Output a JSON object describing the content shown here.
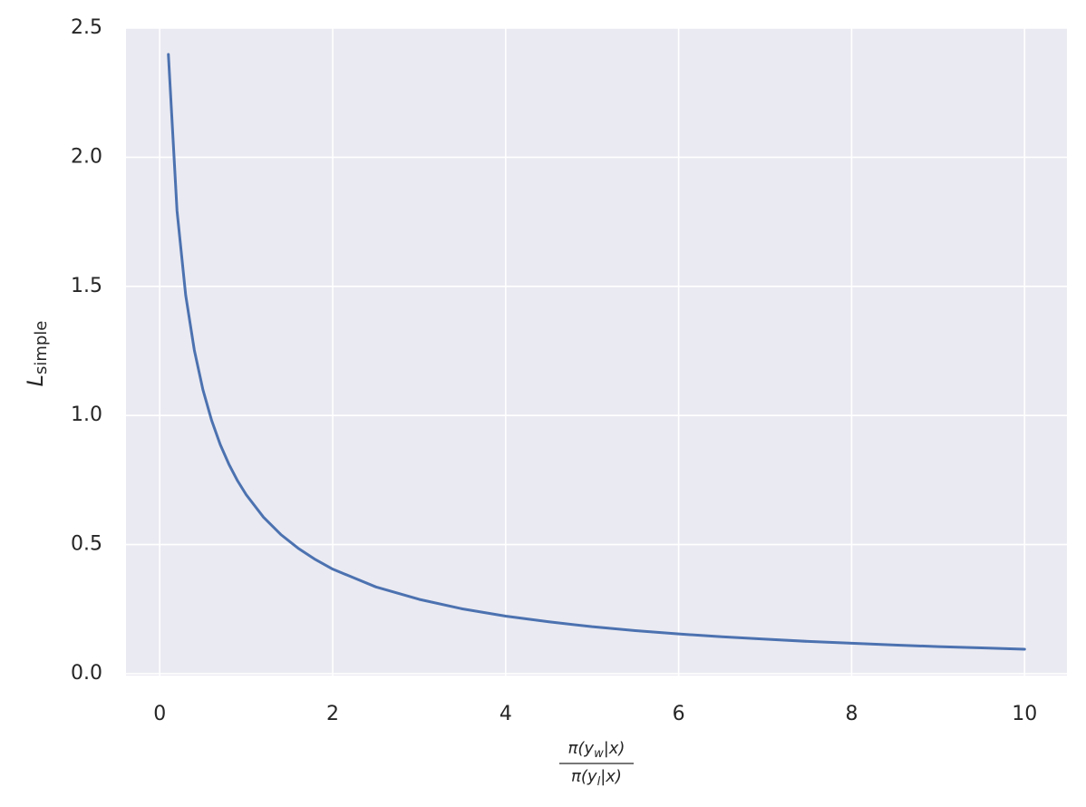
{
  "chart_data": {
    "type": "line",
    "ylabel": {
      "main": "L",
      "subscript": "simple"
    },
    "xlabel": {
      "numerator": [
        "π(y",
        "w",
        "|x)"
      ],
      "denominator": [
        "π(y",
        "l",
        "|x)"
      ]
    },
    "x": [
      0.1,
      0.2,
      0.3,
      0.4,
      0.5,
      0.6,
      0.7,
      0.8,
      0.9,
      1.0,
      1.2,
      1.4,
      1.6,
      1.8,
      2.0,
      2.5,
      3,
      3.5,
      4,
      4.5,
      5,
      5.5,
      6,
      6.5,
      7,
      7.5,
      8,
      8.5,
      9,
      9.5,
      10
    ],
    "series": [
      {
        "name": "L_simple",
        "color": "#4c72b0",
        "values": [
          2.398,
          1.792,
          1.466,
          1.253,
          1.099,
          0.981,
          0.887,
          0.811,
          0.747,
          0.693,
          0.606,
          0.539,
          0.486,
          0.442,
          0.405,
          0.336,
          0.288,
          0.251,
          0.223,
          0.201,
          0.182,
          0.167,
          0.154,
          0.143,
          0.134,
          0.125,
          0.118,
          0.111,
          0.105,
          0.1,
          0.095
        ]
      }
    ],
    "xlim": [
      -0.39,
      10.49
    ],
    "ylim": [
      -0.007,
      2.5
    ],
    "xticks": [
      0,
      2,
      4,
      6,
      8,
      10
    ],
    "yticks": [
      {
        "value": 0,
        "label": "0.0"
      },
      {
        "value": 0.5,
        "label": "0.5"
      },
      {
        "value": 1,
        "label": "1.0"
      },
      {
        "value": 1.5,
        "label": "1.5"
      },
      {
        "value": 2,
        "label": "2.0"
      },
      {
        "value": 2.5,
        "label": "2.5"
      }
    ],
    "grid": true
  }
}
